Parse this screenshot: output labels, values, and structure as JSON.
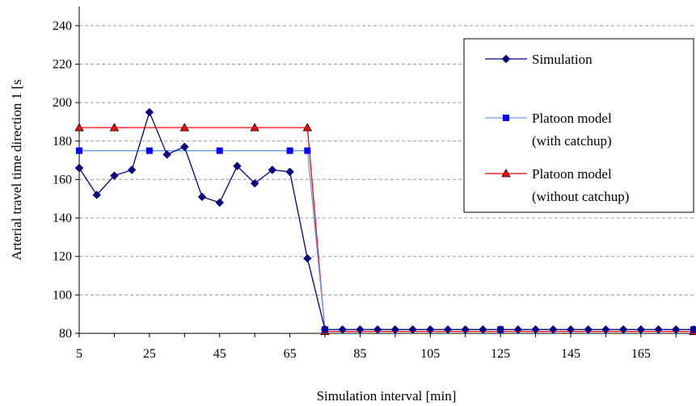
{
  "chart_data": {
    "type": "line",
    "xlabel": "Simulation interval [min]",
    "ylabel": "Arterial travel time direction 1 [s",
    "xlim": [
      5,
      180
    ],
    "ylim": [
      80,
      250
    ],
    "x_ticks": [
      5,
      25,
      45,
      65,
      85,
      105,
      125,
      145,
      165
    ],
    "y_ticks": [
      80,
      100,
      120,
      140,
      160,
      180,
      200,
      220,
      240
    ],
    "grid": "horizontal dashed",
    "legend_position": "right",
    "series": [
      {
        "name": "Simulation",
        "color": "#000080",
        "marker": "diamond",
        "x": [
          5,
          10,
          15,
          20,
          25,
          30,
          35,
          40,
          45,
          50,
          55,
          60,
          65,
          70,
          75,
          80,
          85,
          90,
          95,
          100,
          105,
          110,
          115,
          120,
          125,
          130,
          135,
          140,
          145,
          150,
          155,
          160,
          165,
          170,
          175,
          180
        ],
        "y": [
          166,
          152,
          162,
          165,
          195,
          173,
          177,
          151,
          148,
          167,
          158,
          165,
          164,
          119,
          82,
          82,
          82,
          82,
          82,
          82,
          82,
          82,
          82,
          82,
          82,
          82,
          82,
          82,
          82,
          82,
          82,
          82,
          82,
          82,
          82,
          82
        ]
      },
      {
        "name": "Platoon model (with catchup)",
        "legend_lines": [
          "Platoon model",
          "(with catchup)"
        ],
        "color": "#0000ff",
        "line_color": "#6699ff",
        "marker": "square",
        "x": [
          5,
          25,
          45,
          65,
          70,
          75,
          125,
          180
        ],
        "y": [
          175,
          175,
          175,
          175,
          175,
          82,
          82,
          82
        ]
      },
      {
        "name": "Platoon model (without catchup)",
        "legend_lines": [
          "Platoon model",
          "(without catchup)"
        ],
        "color": "#ff0000",
        "marker": "triangle",
        "x": [
          5,
          15,
          35,
          55,
          70,
          75,
          180
        ],
        "y": [
          187,
          187,
          187,
          187,
          187,
          81,
          81
        ]
      }
    ]
  }
}
